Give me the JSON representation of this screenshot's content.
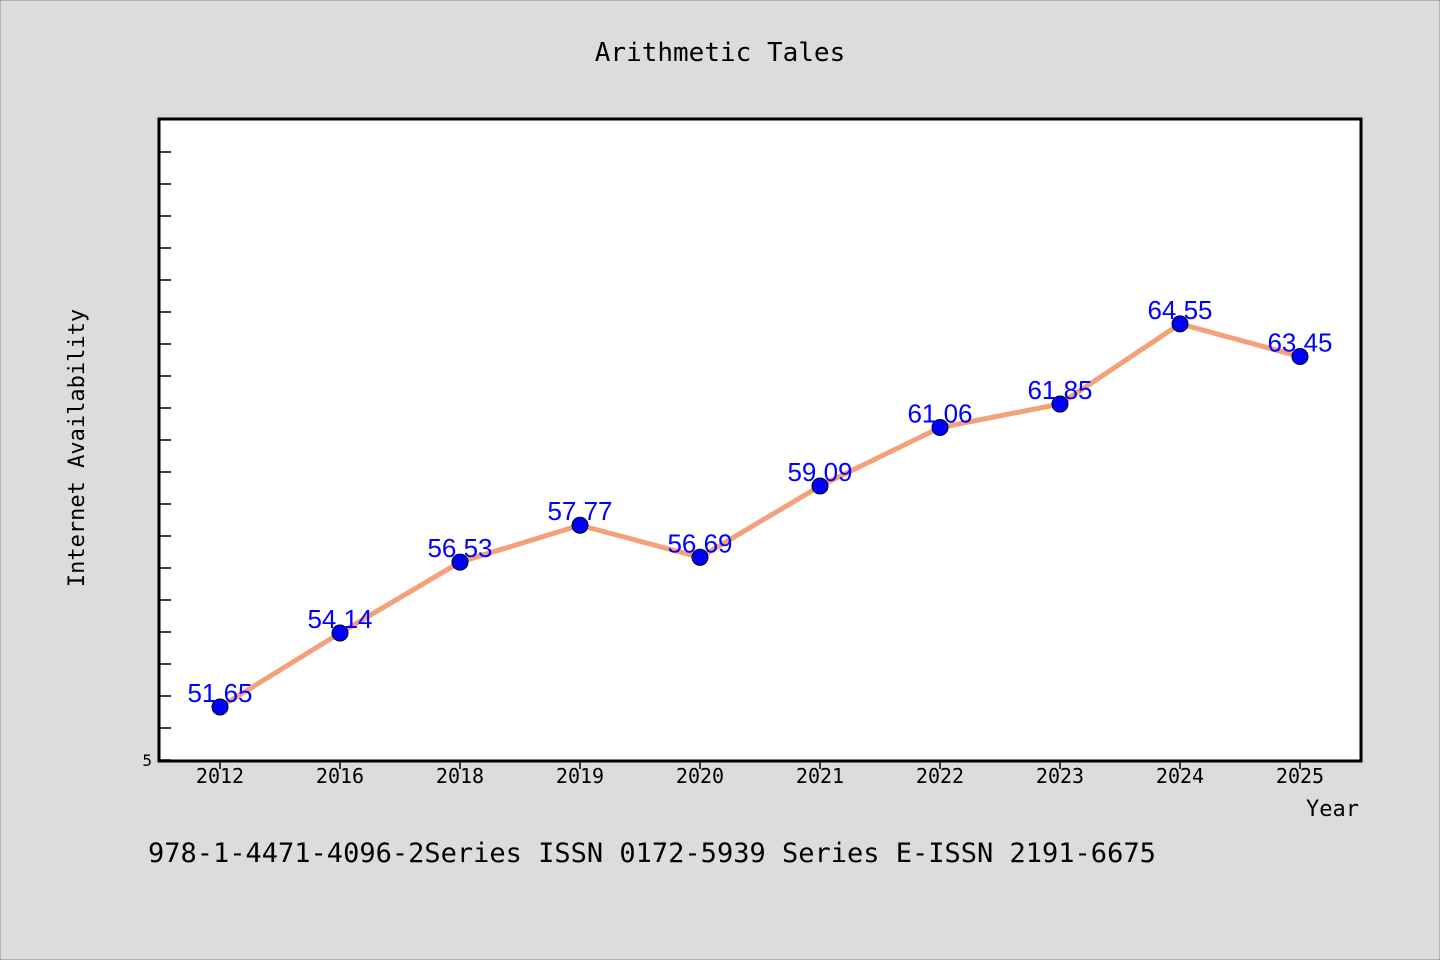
{
  "chart_data": {
    "type": "line",
    "title": "Arithmetic Tales",
    "xlabel": "Year",
    "ylabel": "Internet Availability",
    "categories": [
      "2012",
      "2016",
      "2018",
      "2019",
      "2020",
      "2021",
      "2022",
      "2023",
      "2024",
      "2025"
    ],
    "series": [
      {
        "values": [
          51.65,
          54.14,
          56.53,
          57.77,
          56.69,
          59.09,
          61.06,
          61.85,
          64.55,
          63.45
        ],
        "line_color": "#f4a07a",
        "marker_color": "#0000ff"
      }
    ],
    "data_labels": [
      "51.65",
      "54.14",
      "56.53",
      "57.77",
      "56.69",
      "59.09",
      "61.06",
      "61.85",
      "64.55",
      "63.45"
    ],
    "y_tick_labels": [
      "5"
    ],
    "ylim": [
      50,
      70
    ],
    "grid": false,
    "legend": "none",
    "label_color": "#0000ff"
  },
  "footer_text": "978-1-4471-4096-2Series ISSN 0172-5939 Series E-ISSN 2191-6675",
  "colors": {
    "page_background": "#dcdcdc",
    "plot_background": "#ffffff",
    "frame": "#000000"
  }
}
